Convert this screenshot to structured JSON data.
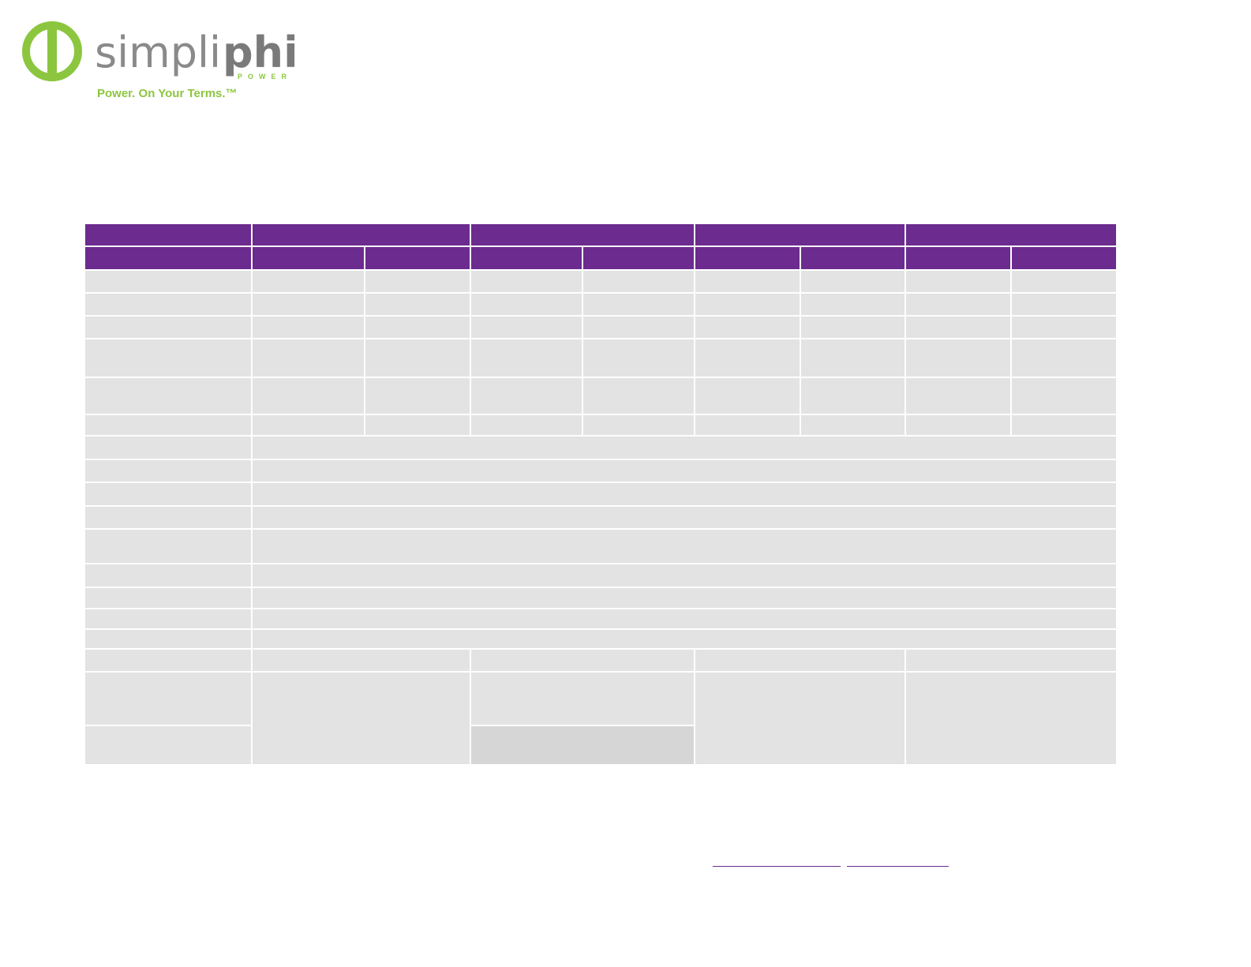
{
  "header": {
    "logo": {
      "brand_light": "simpli",
      "brand_bold": "phi",
      "brand_sub": "POWER",
      "tagline": "Power. On Your Terms.™"
    }
  }
}
